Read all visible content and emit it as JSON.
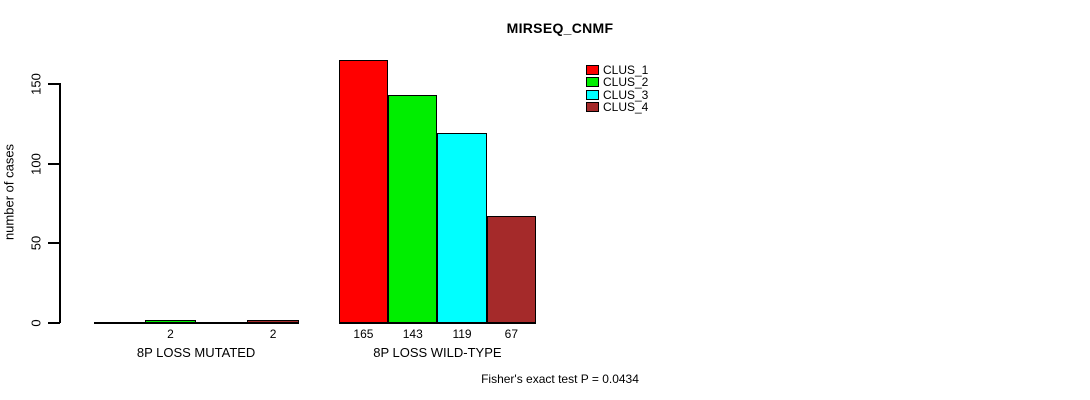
{
  "title": "MIRSEQ_CNMF",
  "footer": "Fisher's exact test P = 0.0434",
  "y_axis_label": "number of cases",
  "chart_data": {
    "type": "bar",
    "title": "MIRSEQ_CNMF",
    "xlabel": "",
    "ylabel": "number of cases",
    "ylim": [
      0,
      165
    ],
    "yticks": [
      0,
      50,
      100,
      150
    ],
    "grid": false,
    "categories": [
      "8P LOSS MUTATED",
      "8P LOSS WILD-TYPE"
    ],
    "series": [
      {
        "name": "CLUS_1",
        "color": "#ff0000",
        "values": [
          0,
          165
        ]
      },
      {
        "name": "CLUS_2",
        "color": "#00ee00",
        "values": [
          2,
          143
        ]
      },
      {
        "name": "CLUS_3",
        "color": "#00ffff",
        "values": [
          0,
          119
        ]
      },
      {
        "name": "CLUS_4",
        "color": "#a52a2a",
        "values": [
          2,
          67
        ]
      }
    ],
    "bar_value_labels": {
      "shown": true,
      "hidden_when_zero": true
    },
    "legend_position": "inside-top-right",
    "annotation": "Fisher's exact test P = 0.0434"
  }
}
